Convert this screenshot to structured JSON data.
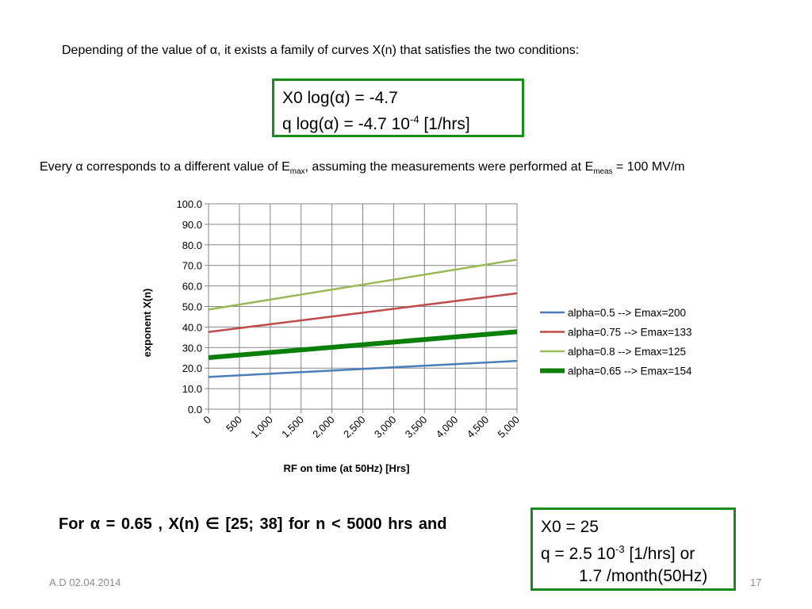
{
  "intro_text": "Depending of the value of α, it exists a family of curves X(n) that satisfies the two conditions:",
  "box1": {
    "line1": "X0 log(α) = -4.7",
    "line2_pre": "q log(α)   = -4.7 10",
    "line2_sup": "-4",
    "line2_post": " [1/hrs]"
  },
  "every": {
    "pre": "Every α corresponds to a different value of E",
    "sub1": "max",
    "mid": ", assuming the measurements were performed at E",
    "sub2": "meas",
    "post": " = 100 MV/m"
  },
  "conclusion": {
    "text": "For  α = 0.65 ,  X(n) ∈ [25; 38] for n < 5000 hrs    and"
  },
  "box2": {
    "line1": "X0 = 25",
    "line2_pre": "q   = 2.5 10",
    "line2_sup": "-3",
    "line2_post": " [1/hrs] or",
    "line3": "1.7 /month(50Hz)"
  },
  "footer": {
    "date": "A.D 02.04.2014",
    "page": "17"
  },
  "chart_data": {
    "type": "line",
    "xlabel": "RF on time (at 50Hz) [Hrs]",
    "ylabel": "exponent X(n)",
    "xlim": [
      0,
      5000
    ],
    "ylim": [
      0,
      100
    ],
    "x_ticks": [
      "0",
      "500",
      "1,000",
      "1,500",
      "2,000",
      "2,500",
      "3,000",
      "3,500",
      "4,000",
      "4,500",
      "5,000"
    ],
    "y_ticks": [
      "0.0",
      "10.0",
      "20.0",
      "30.0",
      "40.0",
      "50.0",
      "60.0",
      "70.0",
      "80.0",
      "90.0",
      "100.0"
    ],
    "grid": true,
    "legend_position": "right",
    "series": [
      {
        "name": "alpha=0.5 --> Emax=200",
        "color": "#4a7ebb",
        "width": 2.5,
        "x": [
          0,
          5000
        ],
        "y": [
          15.7,
          23.5
        ]
      },
      {
        "name": "alpha=0.75 --> Emax=133",
        "color": "#be4b48",
        "width": 2.5,
        "x": [
          0,
          5000
        ],
        "y": [
          37.6,
          56.4
        ]
      },
      {
        "name": "alpha=0.8 --> Emax=125",
        "color": "#98b954",
        "width": 2.5,
        "x": [
          0,
          5000
        ],
        "y": [
          48.5,
          72.8
        ]
      },
      {
        "name": "alpha=0.65 --> Emax=154",
        "color": "#0a7f0a",
        "width": 6,
        "x": [
          0,
          5000
        ],
        "y": [
          25.1,
          37.7
        ]
      }
    ]
  }
}
